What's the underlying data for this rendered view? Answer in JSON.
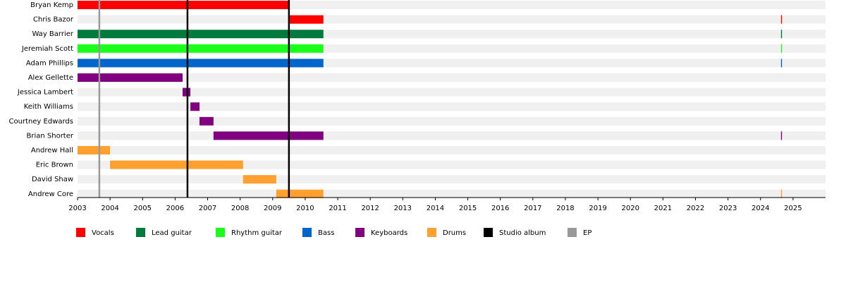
{
  "chart_data": {
    "type": "timeline",
    "categories": [
      "Bryan Kemp",
      "Chris Bazor",
      "Way Barrier",
      "Jeremiah Scott",
      "Adam Phillips",
      "Alex Gellette",
      "Jessica Lambert",
      "Keith Williams",
      "Courtney Edwards",
      "Brian Shorter",
      "Andrew Hall",
      "Eric Brown",
      "David Shaw",
      "Andrew Core"
    ],
    "xlim": [
      2003,
      2026
    ],
    "xticks": [
      2003,
      2004,
      2005,
      2006,
      2007,
      2008,
      2009,
      2010,
      2011,
      2012,
      2013,
      2014,
      2015,
      2016,
      2017,
      2018,
      2019,
      2020,
      2021,
      2022,
      2023,
      2024,
      2025
    ],
    "series": [
      {
        "name": "Vocals",
        "color": "#ff0000",
        "values": [
          [
            [
              2003,
              2009.5
            ]
          ],
          [
            [
              2009.5,
              2010.56
            ],
            [
              2024.63,
              2024.66
            ]
          ],
          null,
          null,
          null,
          null,
          null,
          null,
          null,
          null,
          null,
          null,
          null,
          null
        ]
      },
      {
        "name": "Lead guitar",
        "color": "#007a3d",
        "values": [
          null,
          null,
          [
            [
              2003,
              2010.56
            ],
            [
              2024.63,
              2024.66
            ]
          ],
          null,
          null,
          null,
          null,
          null,
          null,
          null,
          null,
          null,
          null,
          null
        ]
      },
      {
        "name": "Rhythm guitar",
        "color": "#1aff1a",
        "values": [
          null,
          null,
          null,
          [
            [
              2003,
              2010.56
            ],
            [
              2024.63,
              2024.66
            ]
          ],
          null,
          null,
          null,
          null,
          null,
          null,
          null,
          null,
          null,
          null
        ]
      },
      {
        "name": "Bass",
        "color": "#0066cc",
        "values": [
          null,
          null,
          null,
          null,
          [
            [
              2003,
              2010.56
            ],
            [
              2024.63,
              2024.66
            ]
          ],
          null,
          null,
          null,
          null,
          null,
          null,
          null,
          null,
          null
        ]
      },
      {
        "name": "Keyboards",
        "color": "#800080",
        "values": [
          null,
          null,
          null,
          null,
          null,
          [
            [
              2003,
              2006.23
            ]
          ],
          [
            [
              2006.23,
              2006.47
            ]
          ],
          [
            [
              2006.47,
              2006.75
            ]
          ],
          [
            [
              2006.75,
              2007.18
            ]
          ],
          [
            [
              2007.18,
              2010.56
            ],
            [
              2024.63,
              2024.66
            ]
          ],
          null,
          null,
          null,
          null
        ]
      },
      {
        "name": "Drums",
        "color": "#ffa030",
        "values": [
          null,
          null,
          null,
          null,
          null,
          null,
          null,
          null,
          null,
          null,
          [
            [
              2003,
              2004.0
            ]
          ],
          [
            [
              2004.0,
              2008.09
            ]
          ],
          [
            [
              2008.09,
              2009.11
            ]
          ],
          [
            [
              2009.11,
              2010.56
            ],
            [
              2024.63,
              2024.66
            ]
          ]
        ]
      }
    ],
    "markers": [
      {
        "name": "Studio album",
        "color": "#000000",
        "x": [
          2006.38,
          2009.5
        ]
      },
      {
        "name": "EP",
        "color": "#999999",
        "x": [
          2003.67
        ]
      }
    ]
  }
}
